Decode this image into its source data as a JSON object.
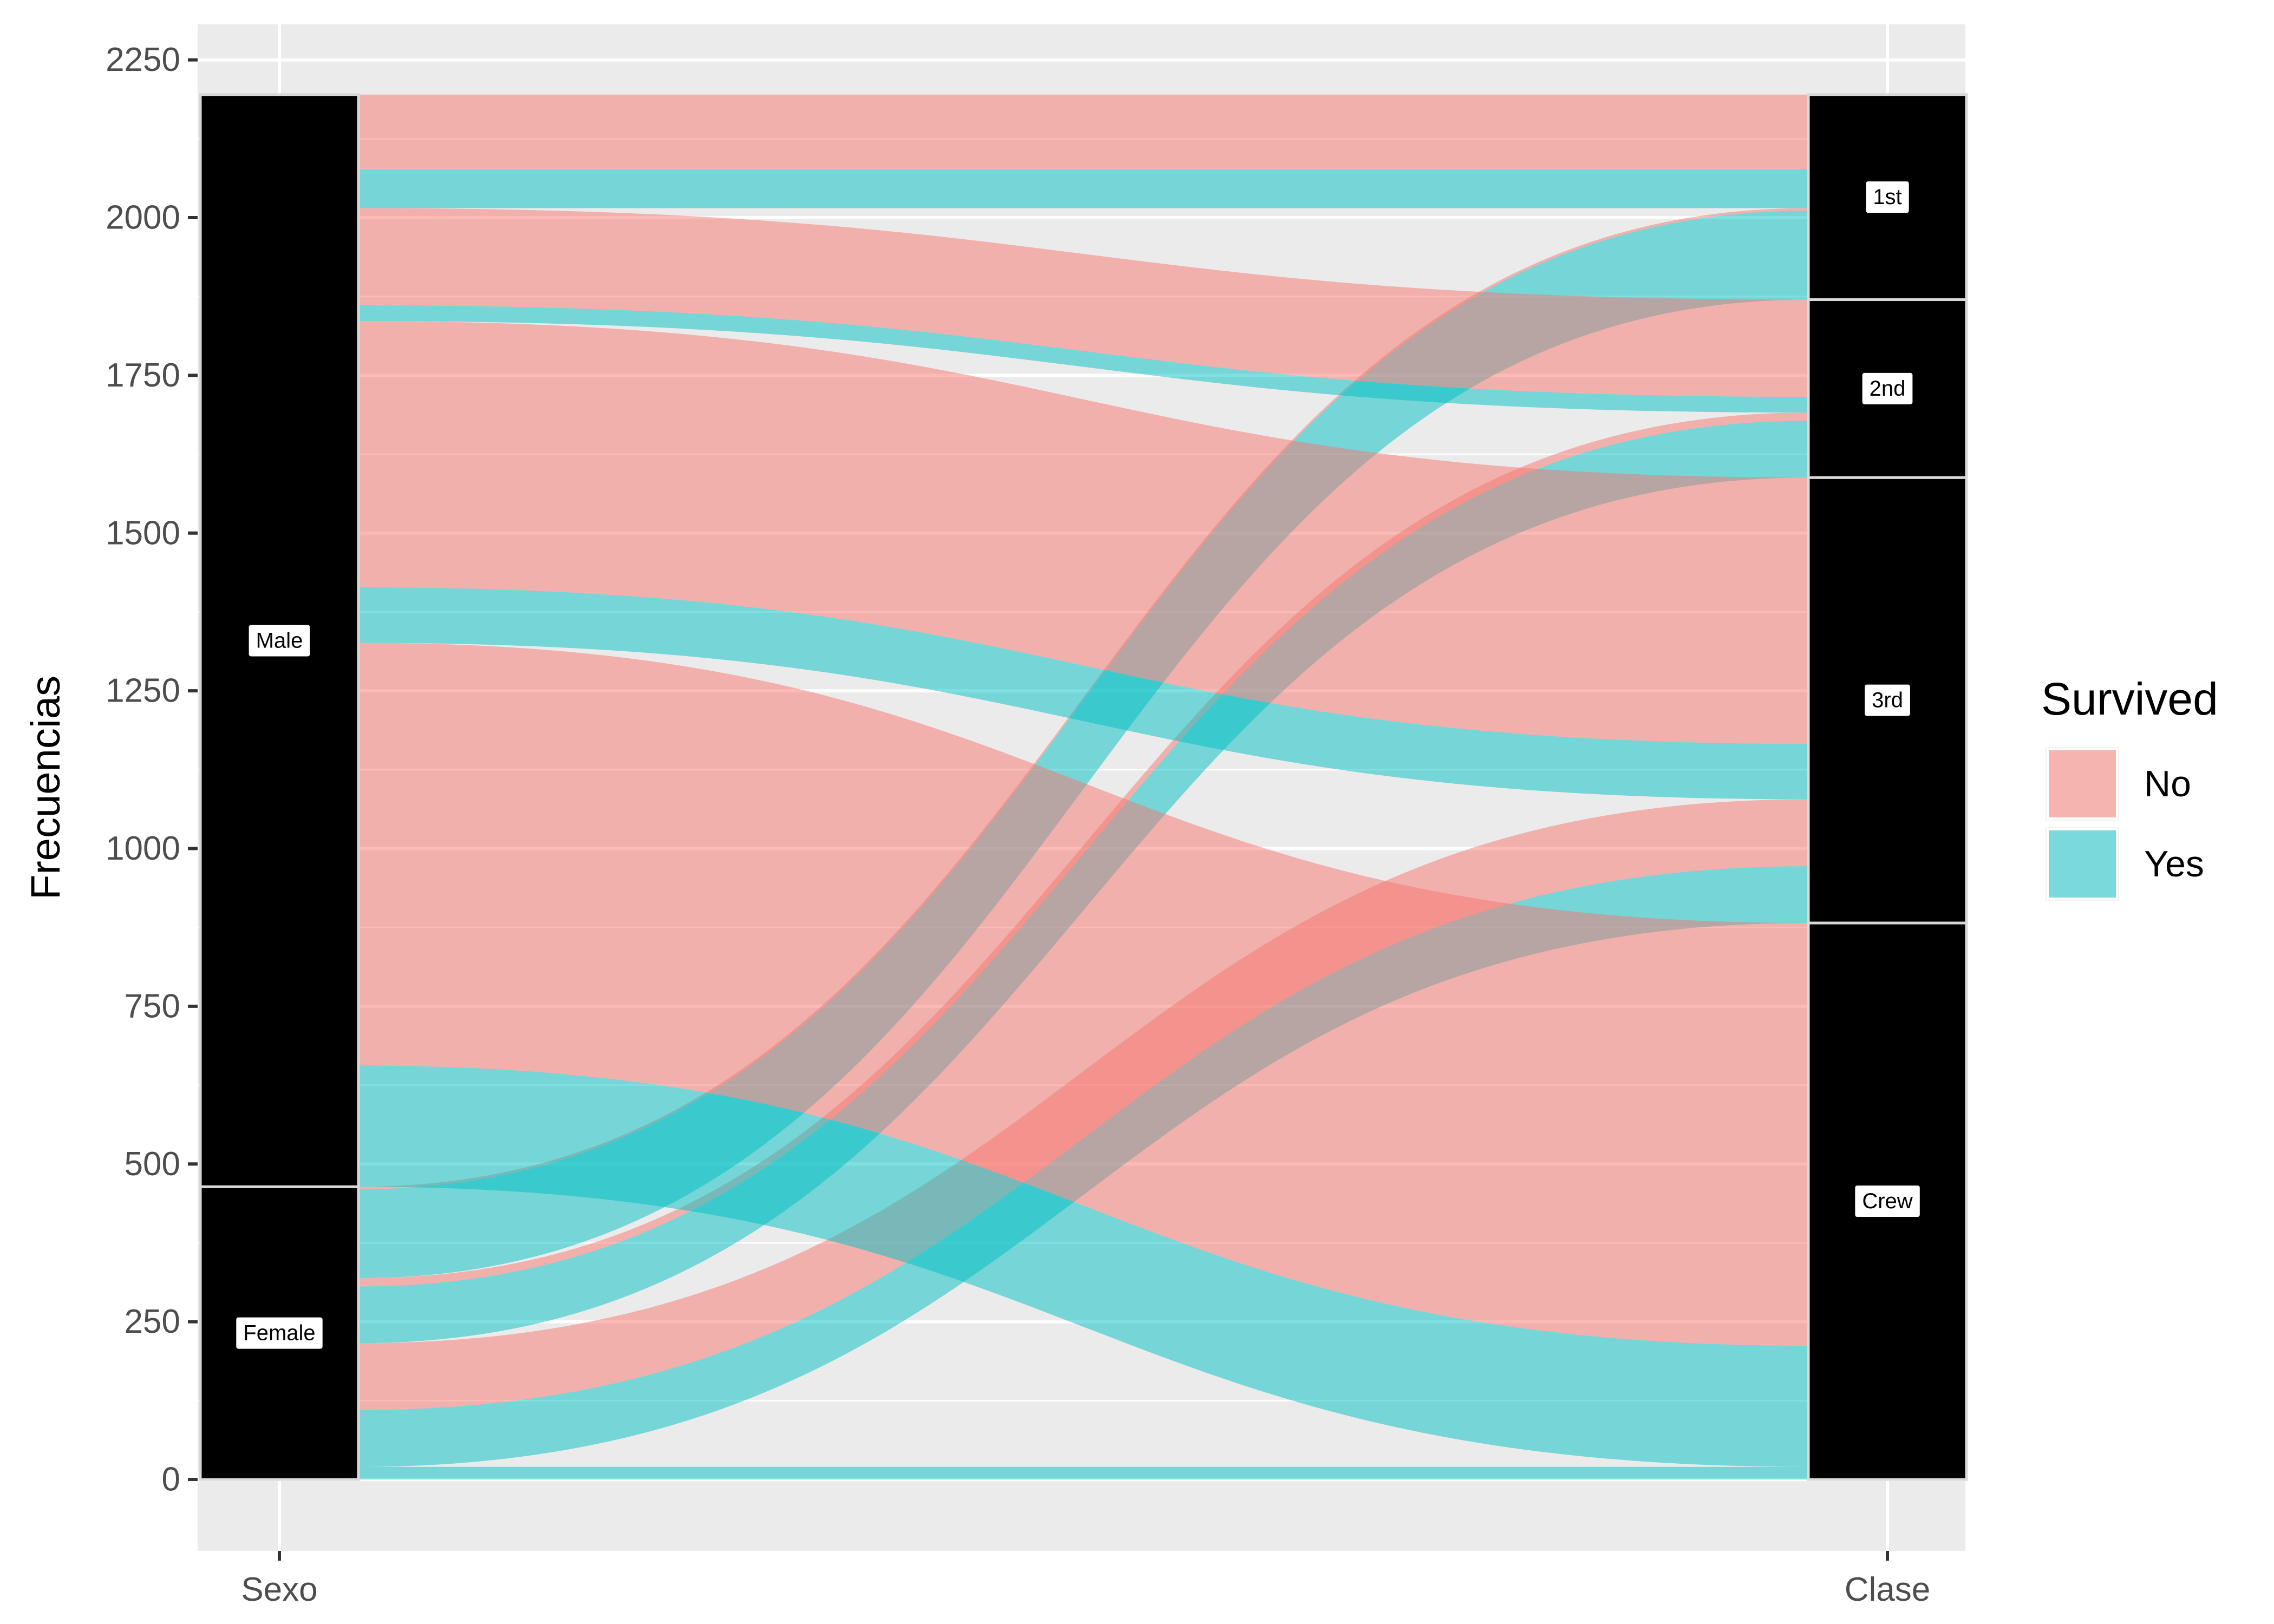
{
  "chart_data": {
    "type": "alluvial",
    "ylabel": "Frecuencias",
    "axes": [
      "Sexo",
      "Clase"
    ],
    "y_ticks": [
      0,
      250,
      500,
      750,
      1000,
      1250,
      1500,
      1750,
      2000,
      2250
    ],
    "ylim": [
      -110,
      2290
    ],
    "grid": true,
    "legend": {
      "title": "Survived",
      "position": "right",
      "entries": [
        {
          "label": "No",
          "color": "#F8766D"
        },
        {
          "label": "Yes",
          "color": "#00BFC4"
        }
      ]
    },
    "strata": {
      "Sexo": [
        "Female",
        "Male"
      ],
      "Clase": [
        "Crew",
        "3rd",
        "2nd",
        "1st"
      ]
    },
    "flows": [
      {
        "sexo": "Female",
        "clase": "Crew",
        "survived": "Yes",
        "value": 20
      },
      {
        "sexo": "Female",
        "clase": "3rd",
        "survived": "Yes",
        "value": 90
      },
      {
        "sexo": "Female",
        "clase": "3rd",
        "survived": "No",
        "value": 106
      },
      {
        "sexo": "Female",
        "clase": "2nd",
        "survived": "Yes",
        "value": 90
      },
      {
        "sexo": "Female",
        "clase": "2nd",
        "survived": "No",
        "value": 13
      },
      {
        "sexo": "Female",
        "clase": "1st",
        "survived": "Yes",
        "value": 141
      },
      {
        "sexo": "Female",
        "clase": "1st",
        "survived": "No",
        "value": 4
      },
      {
        "sexo": "Male",
        "clase": "Crew",
        "survived": "Yes",
        "value": 192
      },
      {
        "sexo": "Male",
        "clase": "Crew",
        "survived": "No",
        "value": 670
      },
      {
        "sexo": "Male",
        "clase": "3rd",
        "survived": "Yes",
        "value": 88
      },
      {
        "sexo": "Male",
        "clase": "3rd",
        "survived": "No",
        "value": 422
      },
      {
        "sexo": "Male",
        "clase": "2nd",
        "survived": "Yes",
        "value": 25
      },
      {
        "sexo": "Male",
        "clase": "2nd",
        "survived": "No",
        "value": 154
      },
      {
        "sexo": "Male",
        "clase": "1st",
        "survived": "Yes",
        "value": 62
      },
      {
        "sexo": "Male",
        "clase": "1st",
        "survived": "No",
        "value": 118
      }
    ]
  }
}
